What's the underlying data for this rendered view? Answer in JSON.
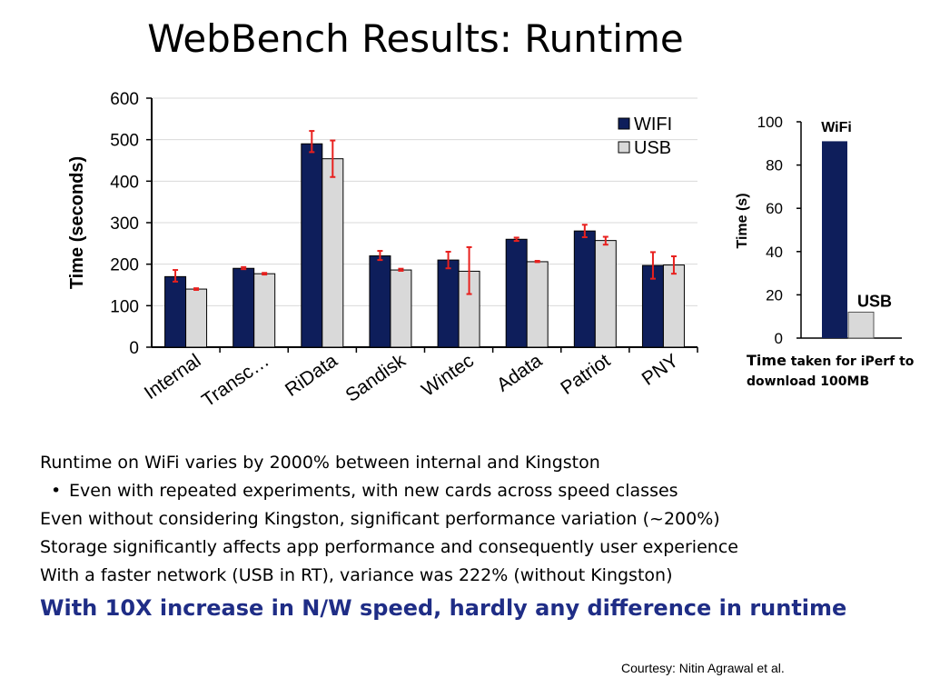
{
  "slide": {
    "title": "WebBench Results: Runtime",
    "bullets": [
      "Runtime on WiFi varies by 2000% between internal and Kingston",
      "Even with repeated experiments, with new cards across speed classes",
      "Even without considering Kingston, significant performance variation (~200%)",
      "Storage significantly affects app performance and consequently user experience",
      "With a faster network (USB in RT), variance was 222% (without Kingston)"
    ],
    "emphasis": "With 10X increase in N/W speed, hardly any difference in runtime",
    "courtesy": "Courtesy: Nitin Agrawal et al.",
    "side_caption_lead": "Time",
    "side_caption_rest": "taken for iPerf to download 100MB"
  },
  "colors": {
    "wifi": "#0e1e5b",
    "usb": "#d9d9d9",
    "error_bar": "#e8201e",
    "emphasis_text": "#1f2d86"
  },
  "chart_data": [
    {
      "type": "bar",
      "title": "",
      "xlabel": "",
      "ylabel": "Time (seconds)",
      "ylim": [
        0,
        600
      ],
      "yticks": [
        0,
        100,
        200,
        300,
        400,
        500,
        600
      ],
      "grid": true,
      "legend_position": "top-right",
      "categories": [
        "Internal",
        "Transc…",
        "RiData",
        "Sandisk",
        "Wintec",
        "Adata",
        "Patriot",
        "PNY"
      ],
      "series": [
        {
          "name": "WIFI",
          "values": [
            170,
            190,
            490,
            220,
            210,
            260,
            280,
            197
          ],
          "error_low": [
            158,
            188,
            470,
            210,
            190,
            256,
            265,
            165
          ],
          "error_high": [
            186,
            193,
            521,
            232,
            230,
            264,
            295,
            229
          ]
        },
        {
          "name": "USB",
          "values": [
            140,
            177,
            454,
            186,
            183,
            206,
            257,
            198
          ],
          "error_low": [
            138,
            175,
            410,
            184,
            128,
            205,
            247,
            177
          ],
          "error_high": [
            142,
            179,
            498,
            189,
            241,
            208,
            266,
            219
          ]
        }
      ]
    },
    {
      "type": "bar",
      "title": "",
      "xlabel": "",
      "ylabel": "Time (s)",
      "ylim": [
        0,
        100
      ],
      "yticks": [
        0,
        20,
        40,
        60,
        80,
        100
      ],
      "grid": false,
      "categories": [
        "WiFi",
        "USB"
      ],
      "values": [
        91,
        12
      ]
    }
  ]
}
